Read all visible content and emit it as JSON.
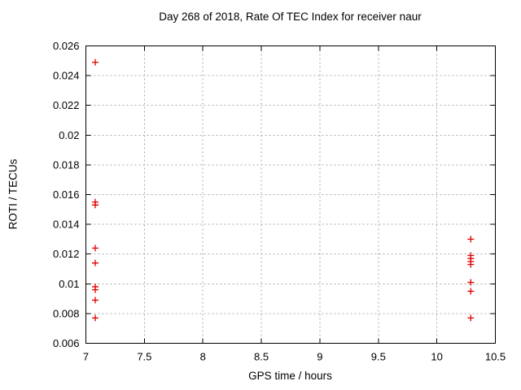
{
  "chart_data": {
    "type": "scatter",
    "title": "Day 268 of 2018, Rate Of TEC Index for receiver naur",
    "xlabel": "GPS time / hours",
    "ylabel": "ROTI / TECUs",
    "xlim": [
      7,
      10.5
    ],
    "ylim": [
      0.006,
      0.026
    ],
    "xticks": [
      7,
      7.5,
      8,
      8.5,
      9,
      9.5,
      10,
      10.5
    ],
    "yticks": [
      0.006,
      0.008,
      0.01,
      0.012,
      0.014,
      0.016,
      0.018,
      0.02,
      0.022,
      0.024,
      0.026
    ],
    "grid": true,
    "legend_position": "none",
    "marker": "plus",
    "marker_color": "#e00000",
    "frame_color": "#000000",
    "grid_color": "#aaaaaa",
    "series": [
      {
        "name": "ROTI",
        "points": [
          {
            "x": 7.08,
            "y": 0.0249
          },
          {
            "x": 7.08,
            "y": 0.0155
          },
          {
            "x": 7.08,
            "y": 0.0153
          },
          {
            "x": 7.08,
            "y": 0.0124
          },
          {
            "x": 7.08,
            "y": 0.0114
          },
          {
            "x": 7.08,
            "y": 0.0098
          },
          {
            "x": 7.08,
            "y": 0.0096
          },
          {
            "x": 7.08,
            "y": 0.0089
          },
          {
            "x": 7.08,
            "y": 0.0077
          },
          {
            "x": 10.29,
            "y": 0.013
          },
          {
            "x": 10.29,
            "y": 0.0119
          },
          {
            "x": 10.29,
            "y": 0.0117
          },
          {
            "x": 10.29,
            "y": 0.0115
          },
          {
            "x": 10.29,
            "y": 0.0113
          },
          {
            "x": 10.29,
            "y": 0.0101
          },
          {
            "x": 10.29,
            "y": 0.0095
          },
          {
            "x": 10.29,
            "y": 0.0077
          }
        ]
      }
    ]
  }
}
